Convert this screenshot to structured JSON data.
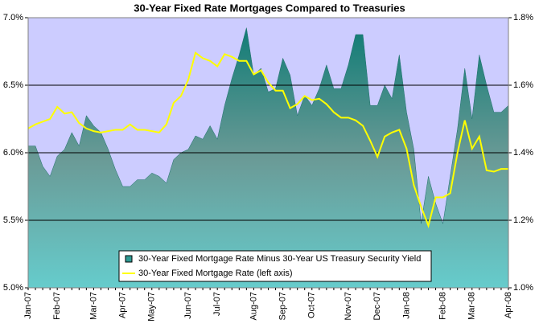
{
  "chart_data": {
    "type": "combo",
    "title": "30-Year Fixed Rate Mortgages Compared to Treasuries",
    "categories": [
      "Jan-07",
      null,
      null,
      null,
      "Feb-07",
      null,
      null,
      null,
      null,
      "Mar-07",
      null,
      null,
      null,
      "Apr-07",
      null,
      null,
      null,
      "May-07",
      null,
      null,
      null,
      null,
      "Jun-07",
      null,
      null,
      null,
      "Jul-07",
      null,
      null,
      null,
      null,
      "Aug-07",
      null,
      null,
      null,
      "Sep-07",
      null,
      null,
      null,
      "Oct-07",
      null,
      null,
      null,
      null,
      "Nov-07",
      null,
      null,
      null,
      "Dec-07",
      null,
      null,
      null,
      "Jan-08",
      null,
      null,
      null,
      null,
      "Feb-08",
      null,
      null,
      null,
      "Mar-08",
      null,
      null,
      null,
      null,
      "Apr-08"
    ],
    "series": [
      {
        "name": "30-Year Fixed Mortgage Rate Minus 30-Year US Treasury Security Yield",
        "type": "area",
        "axis": "y2",
        "color": "#2e9a93",
        "values": [
          1.42,
          1.42,
          1.36,
          1.33,
          1.39,
          1.41,
          1.46,
          1.42,
          1.51,
          1.48,
          1.46,
          1.41,
          1.35,
          1.3,
          1.3,
          1.32,
          1.32,
          1.34,
          1.33,
          1.31,
          1.38,
          1.4,
          1.41,
          1.45,
          1.44,
          1.48,
          1.44,
          1.54,
          1.62,
          1.69,
          1.77,
          1.63,
          1.65,
          1.58,
          1.59,
          1.68,
          1.63,
          1.51,
          1.57,
          1.54,
          1.59,
          1.66,
          1.59,
          1.59,
          1.66,
          1.75,
          1.75,
          1.54,
          1.54,
          1.6,
          1.56,
          1.69,
          1.52,
          1.41,
          1.19,
          1.33,
          1.25,
          1.19,
          1.33,
          1.47,
          1.65,
          1.5,
          1.69,
          1.6,
          1.52,
          1.52,
          1.54
        ]
      },
      {
        "name": "30-Year Fixed Mortgage Rate (left axis)",
        "type": "line",
        "color": "#ffff00",
        "values": [
          6.18,
          6.21,
          6.23,
          6.25,
          6.34,
          6.29,
          6.3,
          6.22,
          6.18,
          6.16,
          6.15,
          6.16,
          6.17,
          6.17,
          6.21,
          6.17,
          6.17,
          6.16,
          6.15,
          6.21,
          6.37,
          6.42,
          6.54,
          6.74,
          6.7,
          6.68,
          6.64,
          6.73,
          6.71,
          6.68,
          6.68,
          6.58,
          6.61,
          6.52,
          6.46,
          6.46,
          6.33,
          6.36,
          6.42,
          6.39,
          6.4,
          6.36,
          6.3,
          6.26,
          6.26,
          6.24,
          6.2,
          6.09,
          5.97,
          6.12,
          6.15,
          6.17,
          6.03,
          5.76,
          5.6,
          5.46,
          5.67,
          5.67,
          5.7,
          6.0,
          6.24,
          6.03,
          6.12,
          5.87,
          5.86,
          5.88,
          5.88
        ]
      }
    ],
    "ylim": [
      5,
      7
    ],
    "yticks": [
      {
        "value": 5,
        "label": "5.0%"
      },
      {
        "value": 5.5,
        "label": "5.5%"
      },
      {
        "value": 6,
        "label": "6.0%"
      },
      {
        "value": 6.5,
        "label": "6.5%"
      },
      {
        "value": 7,
        "label": "7.0%"
      }
    ],
    "y2lim": [
      1,
      1.8
    ],
    "y2ticks": [
      {
        "value": 1,
        "label": "1.0%"
      },
      {
        "value": 1.2,
        "label": "1.2%"
      },
      {
        "value": 1.4,
        "label": "1.4%"
      },
      {
        "value": 1.6,
        "label": "1.6%"
      },
      {
        "value": 1.8,
        "label": "1.8%"
      }
    ],
    "grid": true,
    "plot_background": "#ccccff",
    "legend": "bottom"
  }
}
